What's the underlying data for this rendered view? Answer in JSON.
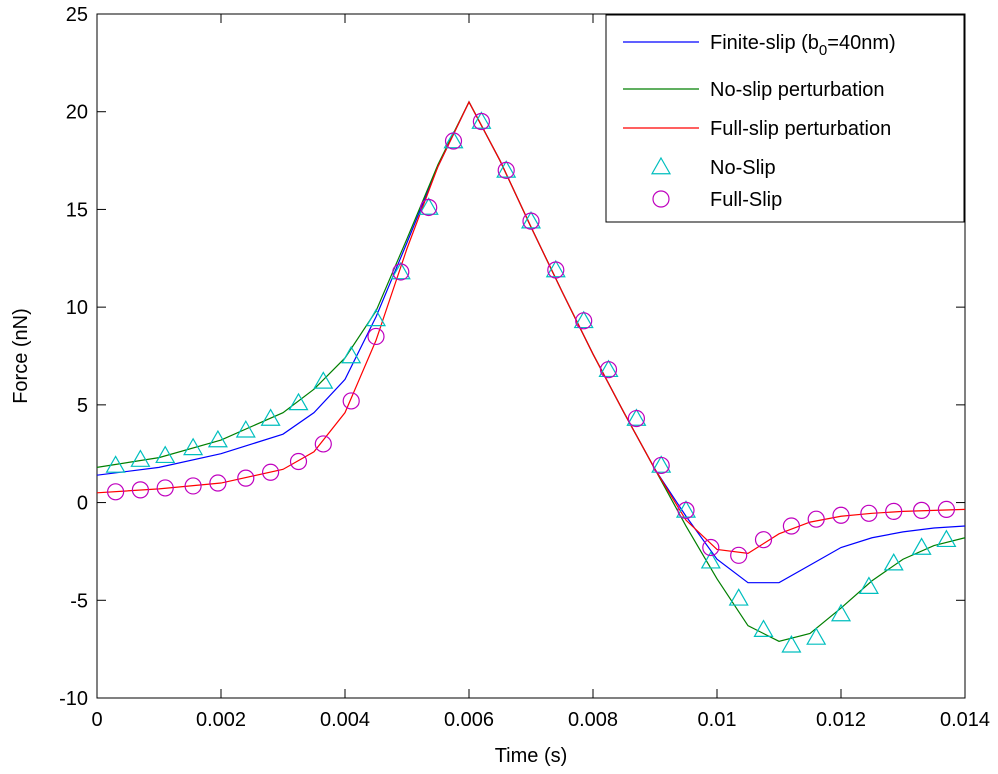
{
  "chart_data": {
    "type": "line",
    "title": "",
    "xlabel": "Time (s)",
    "ylabel": "Force (nN)",
    "xlim": [
      0,
      0.014
    ],
    "ylim": [
      -10,
      25
    ],
    "grid": false,
    "legend_position": "top-right",
    "x_ticks": [
      "0",
      "0.002",
      "0.004",
      "0.006",
      "0.008",
      "0.01",
      "0.012",
      "0.014"
    ],
    "x_tick_values": [
      0,
      0.002,
      0.004,
      0.006,
      0.008,
      0.01,
      0.012,
      0.014
    ],
    "y_ticks": [
      "-10",
      "-5",
      "0",
      "5",
      "10",
      "15",
      "20",
      "25"
    ],
    "y_tick_values": [
      -10,
      -5,
      0,
      5,
      10,
      15,
      20,
      25
    ],
    "series": [
      {
        "name": "Finite-slip (b",
        "name_sub": "0",
        "name_suffix": "=40nm)",
        "color": "#0000ff",
        "style": "line",
        "x": [
          0,
          0.001,
          0.002,
          0.003,
          0.0035,
          0.004,
          0.0045,
          0.005,
          0.0055,
          0.006,
          0.0065,
          0.007,
          0.0075,
          0.008,
          0.0085,
          0.009,
          0.0095,
          0.01,
          0.0105,
          0.011,
          0.0115,
          0.012,
          0.0125,
          0.013,
          0.0135,
          0.014
        ],
        "y": [
          1.4,
          1.8,
          2.5,
          3.5,
          4.6,
          6.3,
          9.5,
          13.3,
          17.2,
          20.5,
          17.5,
          14.1,
          10.8,
          7.6,
          4.6,
          1.7,
          -0.7,
          -2.9,
          -4.1,
          -4.1,
          -3.2,
          -2.3,
          -1.8,
          -1.5,
          -1.3,
          -1.2
        ]
      },
      {
        "name": "No-slip perturbation",
        "color": "#007f00",
        "style": "line",
        "x": [
          0,
          0.001,
          0.002,
          0.003,
          0.0035,
          0.004,
          0.0045,
          0.005,
          0.0055,
          0.006,
          0.0065,
          0.007,
          0.0075,
          0.008,
          0.0085,
          0.009,
          0.0095,
          0.01,
          0.0105,
          0.011,
          0.0115,
          0.012,
          0.0125,
          0.013,
          0.0135,
          0.014
        ],
        "y": [
          1.8,
          2.3,
          3.2,
          4.6,
          5.8,
          7.4,
          9.8,
          13.5,
          17.3,
          20.5,
          17.5,
          14.1,
          10.8,
          7.6,
          4.6,
          1.7,
          -1.2,
          -3.9,
          -6.3,
          -7.1,
          -6.7,
          -5.4,
          -4.0,
          -2.9,
          -2.2,
          -1.8
        ]
      },
      {
        "name": "Full-slip perturbation",
        "color": "#ff0000",
        "style": "line",
        "x": [
          0,
          0.001,
          0.002,
          0.003,
          0.0035,
          0.004,
          0.0045,
          0.005,
          0.0055,
          0.006,
          0.0065,
          0.007,
          0.0075,
          0.008,
          0.0085,
          0.009,
          0.0095,
          0.01,
          0.0105,
          0.011,
          0.0115,
          0.012,
          0.0125,
          0.013,
          0.0135,
          0.014
        ],
        "y": [
          0.5,
          0.7,
          1.0,
          1.7,
          2.6,
          4.6,
          8.3,
          13.0,
          17.2,
          20.5,
          17.5,
          14.1,
          10.8,
          7.6,
          4.6,
          1.7,
          -0.9,
          -2.4,
          -2.6,
          -1.6,
          -1.0,
          -0.7,
          -0.55,
          -0.45,
          -0.4,
          -0.35
        ]
      },
      {
        "name": "No-Slip",
        "color": "#00bfbf",
        "style": "marker",
        "marker": "triangle",
        "x": [
          0.0003,
          0.0007,
          0.0011,
          0.00155,
          0.00195,
          0.0024,
          0.0028,
          0.00325,
          0.00365,
          0.0041,
          0.0045,
          0.0049,
          0.00535,
          0.00575,
          0.0062,
          0.0066,
          0.007,
          0.0074,
          0.00785,
          0.00825,
          0.0087,
          0.0091,
          0.0095,
          0.0099,
          0.01035,
          0.01075,
          0.0112,
          0.0116,
          0.012,
          0.01245,
          0.01285,
          0.0133,
          0.0137
        ],
        "y": [
          1.9,
          2.2,
          2.4,
          2.8,
          3.2,
          3.7,
          4.3,
          5.1,
          6.2,
          7.5,
          9.4,
          11.8,
          15.1,
          18.5,
          19.5,
          17.0,
          14.4,
          11.9,
          9.3,
          6.8,
          4.3,
          1.9,
          -0.4,
          -3.0,
          -4.9,
          -6.5,
          -7.3,
          -6.9,
          -5.7,
          -4.3,
          -3.1,
          -2.3,
          -1.9
        ]
      },
      {
        "name": "Full-Slip",
        "color": "#bf00bf",
        "style": "marker",
        "marker": "circle",
        "x": [
          0.0003,
          0.0007,
          0.0011,
          0.00155,
          0.00195,
          0.0024,
          0.0028,
          0.00325,
          0.00365,
          0.0041,
          0.0045,
          0.0049,
          0.00535,
          0.00575,
          0.0062,
          0.0066,
          0.007,
          0.0074,
          0.00785,
          0.00825,
          0.0087,
          0.0091,
          0.0095,
          0.0099,
          0.01035,
          0.01075,
          0.0112,
          0.0116,
          0.012,
          0.01245,
          0.01285,
          0.0133,
          0.0137
        ],
        "y": [
          0.55,
          0.65,
          0.75,
          0.85,
          1.0,
          1.25,
          1.55,
          2.1,
          3.0,
          5.2,
          8.5,
          11.8,
          15.1,
          18.5,
          19.5,
          17.0,
          14.4,
          11.9,
          9.3,
          6.8,
          4.3,
          1.9,
          -0.4,
          -2.3,
          -2.7,
          -1.9,
          -1.2,
          -0.85,
          -0.65,
          -0.55,
          -0.45,
          -0.4,
          -0.35
        ]
      }
    ]
  }
}
